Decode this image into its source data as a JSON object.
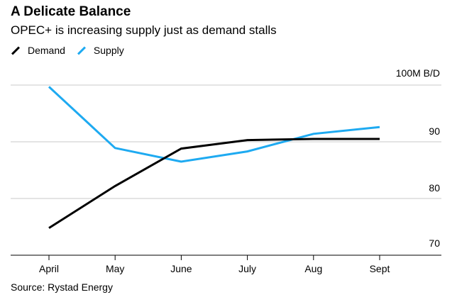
{
  "chart_data": {
    "type": "line",
    "title": "A Delicate Balance",
    "subtitle": "OPEC+ is increasing supply just as demand stalls",
    "unit_label": "100M B/D",
    "categories": [
      "April",
      "May",
      "June",
      "July",
      "Aug",
      "Sept"
    ],
    "series": [
      {
        "name": "Demand",
        "color": "#000000",
        "values": [
          74.8,
          82.2,
          88.8,
          90.3,
          90.5,
          90.5
        ]
      },
      {
        "name": "Supply",
        "color": "#1eaaf1",
        "values": [
          99.7,
          88.9,
          86.5,
          88.3,
          91.4,
          92.6
        ]
      }
    ],
    "yticks": [
      70,
      80,
      90
    ],
    "ylim": [
      70,
      100
    ],
    "grid": true,
    "legend": "top-left",
    "source": "Source: Rystad Energy"
  }
}
